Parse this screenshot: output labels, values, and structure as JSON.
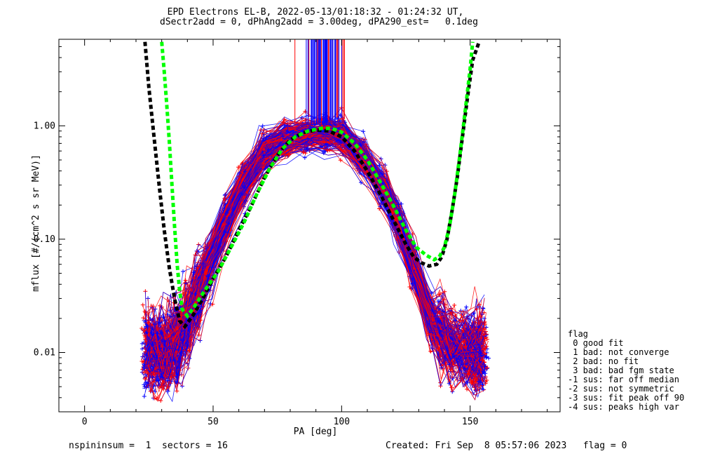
{
  "title": {
    "line1": "EPD Electrons EL-B, 2022-05-13/01:18:32 - 01:24:32 UT,",
    "line2": "dSectr2add = 0, dPhAng2add = 3.00deg, dPA290_est=   0.1deg"
  },
  "footer": {
    "left": "nspininsum =  1  sectors = 16",
    "right": "Created: Fri Sep  8 05:57:06 2023   flag = 0"
  },
  "legend": {
    "title": "flag",
    "items": [
      " 0 good fit",
      " 1 bad: not converge",
      " 2 bad: no fit",
      " 3 bad: bad fgm state",
      "-1 sus: far off median",
      "-2 sus: not symmetric",
      "-3 sus: fit peak off 90",
      "-4 sus: peaks high var"
    ]
  },
  "chart_data": {
    "type": "line",
    "xlabel": "PA [deg]",
    "ylabel": "mflux [#/(cm^2 s sr MeV)]",
    "xlim": [
      -10,
      185
    ],
    "ylim": [
      0.003,
      5.8
    ],
    "yscale": "log",
    "xticks": [
      0,
      50,
      100,
      150
    ],
    "yticks": [
      0.01,
      0.1,
      1.0
    ],
    "ytick_labels": [
      "0.01",
      "0.10",
      "1.00"
    ],
    "grid": false,
    "colors": {
      "red_series": "#ff0000",
      "blue_series": "#0000ff",
      "black_fit": "#000000",
      "green_fit": "#00ff00"
    },
    "traces": {
      "count_per_color": 140,
      "pa_bins": [
        24,
        27,
        30,
        33,
        36,
        40,
        44,
        48,
        55,
        62,
        70,
        78,
        86,
        94,
        100,
        108,
        116,
        122,
        128,
        135,
        139,
        143,
        148,
        152,
        155
      ],
      "median_profile": [
        0.012,
        0.011,
        0.011,
        0.012,
        0.014,
        0.02,
        0.035,
        0.06,
        0.15,
        0.32,
        0.6,
        0.8,
        0.86,
        0.9,
        0.85,
        0.55,
        0.3,
        0.15,
        0.06,
        0.02,
        0.015,
        0.012,
        0.011,
        0.011,
        0.012
      ]
    },
    "fits": [
      {
        "name": "",
        "color": "black",
        "x": [
          23.5,
          25,
          27,
          29,
          31,
          33,
          35,
          37,
          39,
          42,
          46,
          50,
          55,
          60,
          65,
          70,
          75,
          80,
          85,
          90,
          95,
          100,
          105,
          110,
          115,
          120,
          125,
          128,
          131,
          134,
          137,
          139,
          141,
          143,
          145,
          147,
          149,
          151,
          153.5
        ],
        "y": [
          5.5,
          2.2,
          0.8,
          0.3,
          0.12,
          0.055,
          0.03,
          0.019,
          0.017,
          0.021,
          0.03,
          0.045,
          0.07,
          0.12,
          0.2,
          0.35,
          0.55,
          0.75,
          0.87,
          0.92,
          0.9,
          0.8,
          0.6,
          0.4,
          0.25,
          0.15,
          0.09,
          0.07,
          0.062,
          0.058,
          0.06,
          0.07,
          0.1,
          0.18,
          0.35,
          0.8,
          1.8,
          3.8,
          5.5
        ]
      },
      {
        "name": "",
        "color": "green",
        "x": [
          30,
          31,
          32,
          33,
          34,
          35,
          36,
          37,
          38,
          40,
          43,
          47,
          52,
          57,
          62,
          67,
          72,
          77,
          82,
          87,
          92,
          96,
          100,
          105,
          110,
          115,
          120,
          125,
          129,
          133,
          136,
          138,
          140,
          142,
          144,
          146,
          148,
          150,
          151
        ],
        "y": [
          5.5,
          3,
          1.5,
          0.7,
          0.3,
          0.13,
          0.06,
          0.035,
          0.024,
          0.021,
          0.026,
          0.036,
          0.052,
          0.085,
          0.14,
          0.25,
          0.42,
          0.63,
          0.8,
          0.9,
          0.95,
          0.95,
          0.88,
          0.7,
          0.5,
          0.32,
          0.2,
          0.12,
          0.085,
          0.072,
          0.066,
          0.07,
          0.085,
          0.13,
          0.25,
          0.55,
          1.3,
          3.2,
          5.5
        ]
      }
    ]
  }
}
